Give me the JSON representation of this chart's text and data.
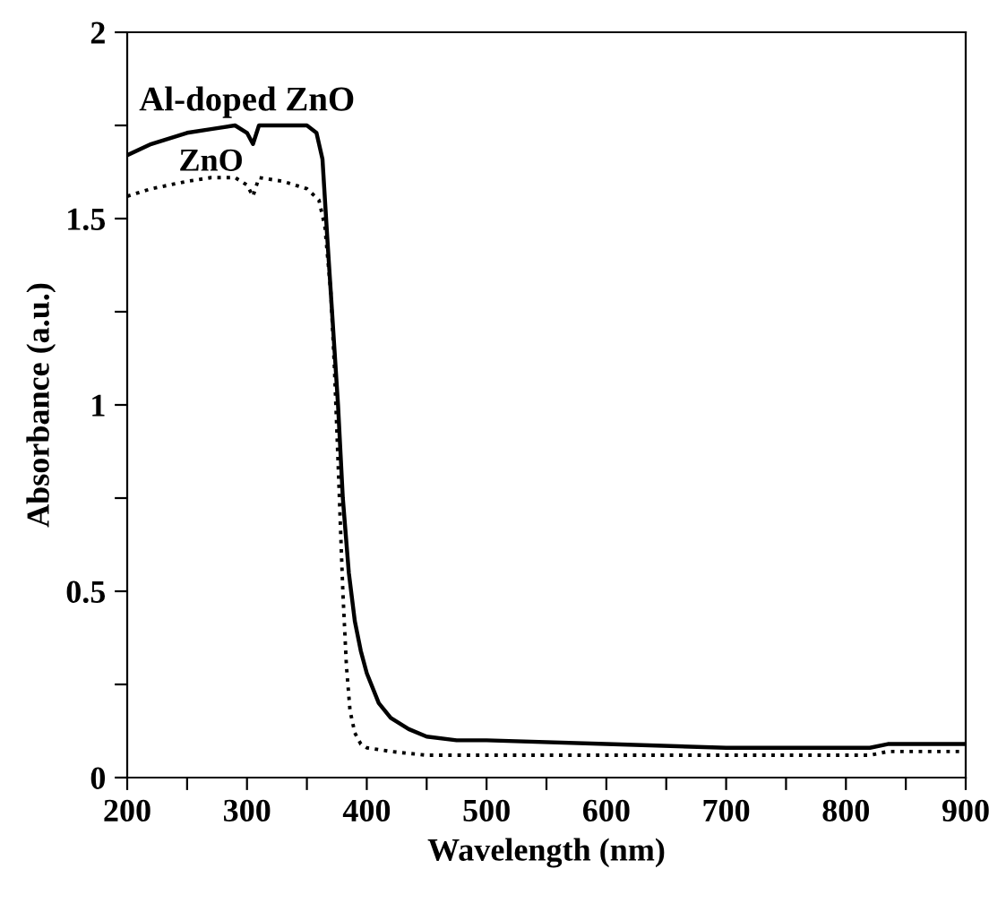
{
  "chart_data": {
    "type": "line",
    "xlabel": "Wavelength (nm)",
    "ylabel": "Absorbance (a.u.)",
    "xlim": [
      200,
      900
    ],
    "ylim": [
      0,
      2
    ],
    "xticks": [
      200,
      {
        "value": 250,
        "label": null
      },
      300,
      {
        "value": 350,
        "label": null
      },
      400,
      {
        "value": 450,
        "label": null
      },
      500,
      {
        "value": 550,
        "label": null
      },
      600,
      {
        "value": 650,
        "label": null
      },
      700,
      {
        "value": 750,
        "label": null
      },
      800,
      {
        "value": 850,
        "label": null
      },
      900
    ],
    "yticks": [
      0,
      {
        "value": 0.25,
        "label": null
      },
      0.5,
      {
        "value": 0.75,
        "label": null
      },
      1,
      {
        "value": 1.25,
        "label": null
      },
      1.5,
      {
        "value": 1.75,
        "label": null
      },
      2
    ],
    "grid": false,
    "legend": false,
    "marker": "none",
    "series": [
      {
        "name": "Al-doped ZnO",
        "color": "#000000",
        "line_style": "solid",
        "x": [
          200,
          220,
          250,
          270,
          290,
          300,
          305,
          310,
          330,
          350,
          358,
          363,
          367,
          370,
          373,
          376,
          380,
          385,
          390,
          395,
          400,
          410,
          420,
          435,
          450,
          475,
          500,
          600,
          700,
          820,
          835,
          850,
          900
        ],
        "values": [
          1.67,
          1.7,
          1.73,
          1.74,
          1.75,
          1.73,
          1.7,
          1.75,
          1.75,
          1.75,
          1.73,
          1.66,
          1.45,
          1.3,
          1.15,
          1.0,
          0.75,
          0.55,
          0.42,
          0.34,
          0.28,
          0.2,
          0.16,
          0.13,
          0.11,
          0.1,
          0.1,
          0.09,
          0.08,
          0.08,
          0.09,
          0.09,
          0.09
        ]
      },
      {
        "name": "ZnO",
        "color": "#000000",
        "line_style": "dotted",
        "x": [
          200,
          220,
          250,
          270,
          290,
          300,
          305,
          310,
          330,
          350,
          360,
          365,
          370,
          373,
          376,
          380,
          383,
          386,
          390,
          395,
          400,
          420,
          450,
          500,
          600,
          700,
          820,
          835,
          850,
          900
        ],
        "values": [
          1.56,
          1.58,
          1.6,
          1.61,
          1.61,
          1.59,
          1.56,
          1.61,
          1.6,
          1.58,
          1.55,
          1.48,
          1.3,
          1.1,
          0.85,
          0.5,
          0.3,
          0.18,
          0.12,
          0.09,
          0.08,
          0.07,
          0.06,
          0.06,
          0.06,
          0.06,
          0.06,
          0.07,
          0.07,
          0.07
        ]
      }
    ]
  }
}
